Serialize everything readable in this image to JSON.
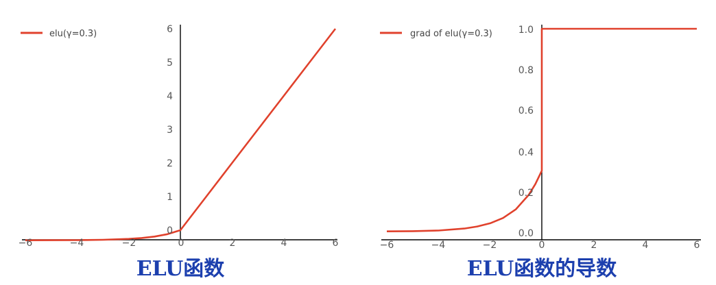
{
  "colors": {
    "line": "#e0412c",
    "axis": "#000000",
    "caption": "#1c3fae",
    "tick": "#555555"
  },
  "charts": [
    {
      "legend": "elu(γ=0.3)",
      "caption": "ELU函数",
      "x_ticks": [
        "−6",
        "−4",
        "−2",
        "0",
        "2",
        "4",
        "6"
      ],
      "y_ticks": [
        "0",
        "1",
        "2",
        "3",
        "4",
        "5",
        "6"
      ]
    },
    {
      "legend": "grad of elu(γ=0.3)",
      "caption": "ELU函数的导数",
      "x_ticks": [
        "−6",
        "−4",
        "−2",
        "0",
        "2",
        "4",
        "6"
      ],
      "y_ticks": [
        "0.0",
        "0.2",
        "0.4",
        "0.6",
        "0.8",
        "1.0"
      ]
    }
  ],
  "chart_data": [
    {
      "type": "line",
      "title": "",
      "caption": "ELU函数",
      "xlabel": "",
      "ylabel": "",
      "xlim": [
        -6,
        6
      ],
      "ylim": [
        0,
        6
      ],
      "grid": false,
      "legend_position": "top-left",
      "series": [
        {
          "name": "elu(γ=0.3)",
          "x": [
            -6,
            -5,
            -4,
            -3,
            -2,
            -1.5,
            -1,
            -0.5,
            0,
            1,
            2,
            3,
            4,
            5,
            6
          ],
          "y": [
            -0.299,
            -0.298,
            -0.295,
            -0.285,
            -0.259,
            -0.233,
            -0.19,
            -0.118,
            0,
            1,
            2,
            3,
            4,
            5,
            6
          ]
        }
      ]
    },
    {
      "type": "line",
      "title": "",
      "caption": "ELU函数的导数",
      "xlabel": "",
      "ylabel": "",
      "xlim": [
        -6,
        6
      ],
      "ylim": [
        0,
        1
      ],
      "grid": false,
      "legend_position": "top-left",
      "series": [
        {
          "name": "grad of elu(γ=0.3)",
          "x": [
            -6,
            -5,
            -4,
            -3,
            -2.5,
            -2,
            -1.5,
            -1,
            -0.5,
            -0.25,
            0,
            0,
            2,
            4,
            6
          ],
          "y": [
            0.001,
            0.002,
            0.005,
            0.015,
            0.025,
            0.041,
            0.067,
            0.11,
            0.182,
            0.234,
            0.3,
            1,
            1,
            1,
            1
          ]
        }
      ]
    }
  ]
}
